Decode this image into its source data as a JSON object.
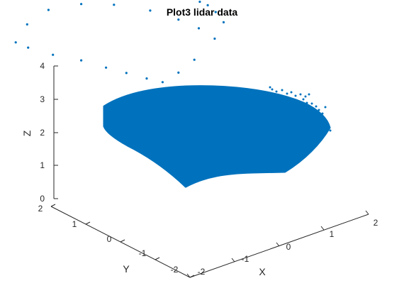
{
  "chart_data": {
    "type": "scatter",
    "projection": "3d",
    "title": "Plot3 lidar data",
    "xlabel": "X",
    "ylabel": "Y",
    "zlabel": "Z",
    "x_ticks": [
      "-2",
      "-1",
      "0",
      "1",
      "2"
    ],
    "y_ticks": [
      "2",
      "1",
      "0",
      "-1",
      "-2"
    ],
    "z_ticks": [
      "4",
      "3",
      "2",
      "1",
      "0"
    ],
    "xlim": [
      -2,
      2
    ],
    "ylim": [
      -2,
      2
    ],
    "zlim": [
      0,
      4
    ],
    "grid": false,
    "marker": "point",
    "colors": {
      "points": "#0072BD",
      "axes": "#262626"
    },
    "series": [
      {
        "points": [
          {
            "x": -1.2,
            "y": 1.8,
            "z": 2.3
          },
          {
            "x": -1.0,
            "y": 1.7,
            "z": 2.1
          },
          {
            "x": -0.6,
            "y": 1.5,
            "z": 1.8
          },
          {
            "x": -0.2,
            "y": 1.2,
            "z": 1.6
          },
          {
            "x": 0.2,
            "y": 1.0,
            "z": 1.3
          },
          {
            "x": 0.5,
            "y": 0.8,
            "z": 1.1
          },
          {
            "x": 0.8,
            "y": 0.6,
            "z": 0.9
          },
          {
            "x": 1.0,
            "y": 0.4,
            "z": 0.8
          },
          {
            "x": -1.1,
            "y": 1.6,
            "z": 2.9
          },
          {
            "x": -0.7,
            "y": 1.5,
            "z": 3.2
          },
          {
            "x": -0.2,
            "y": 1.2,
            "z": 3.3
          },
          {
            "x": 0.3,
            "y": 0.9,
            "z": 3.2
          },
          {
            "x": 0.8,
            "y": 0.5,
            "z": 3.0
          },
          {
            "x": 1.2,
            "y": 0.2,
            "z": 2.7
          },
          {
            "x": 1.5,
            "y": 0.0,
            "z": 2.4
          },
          {
            "x": 1.7,
            "y": -0.2,
            "z": 2.1
          },
          {
            "x": 1.4,
            "y": 0.0,
            "z": 1.5
          },
          {
            "x": 1.2,
            "y": 0.2,
            "z": 1.1
          },
          {
            "x": 1.6,
            "y": 0.1,
            "z": 3.1
          },
          {
            "x": 1.7,
            "y": 0.0,
            "z": 3.0
          },
          {
            "x": 1.8,
            "y": -0.1,
            "z": 2.8
          },
          {
            "x": 1.9,
            "y": -0.2,
            "z": 2.5
          }
        ]
      }
    ]
  }
}
